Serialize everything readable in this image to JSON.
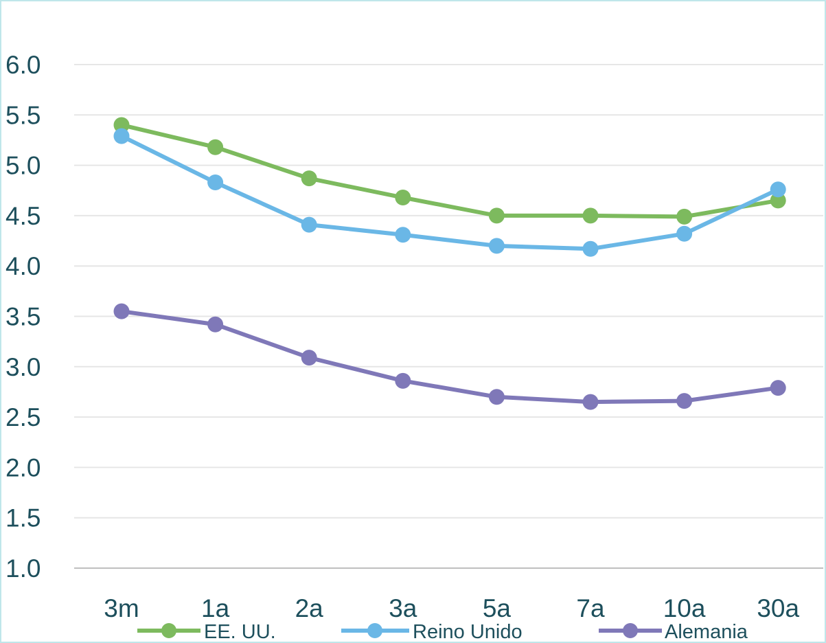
{
  "chart_data": {
    "type": "line",
    "title": "",
    "xlabel": "",
    "ylabel": "",
    "categories": [
      "3m",
      "1a",
      "2a",
      "3a",
      "5a",
      "7a",
      "10a",
      "30a"
    ],
    "ylim": [
      1.0,
      6.0
    ],
    "yticks": [
      "1.0",
      "1.5",
      "2.0",
      "2.5",
      "3.0",
      "3.5",
      "4.0",
      "4.5",
      "5.0",
      "5.5",
      "6.0"
    ],
    "grid": true,
    "legend_position": "bottom",
    "series": [
      {
        "name": "EE. UU.",
        "color": "#7dba5e",
        "values": [
          5.4,
          5.18,
          4.87,
          4.68,
          4.5,
          4.5,
          4.49,
          4.65
        ]
      },
      {
        "name": "Reino Unido",
        "color": "#6ab7e6",
        "values": [
          5.29,
          4.83,
          4.41,
          4.31,
          4.2,
          4.17,
          4.32,
          4.76
        ]
      },
      {
        "name": "Alemania",
        "color": "#7f78b8",
        "values": [
          3.55,
          3.42,
          3.09,
          2.86,
          2.7,
          2.65,
          2.66,
          2.79
        ]
      }
    ]
  }
}
